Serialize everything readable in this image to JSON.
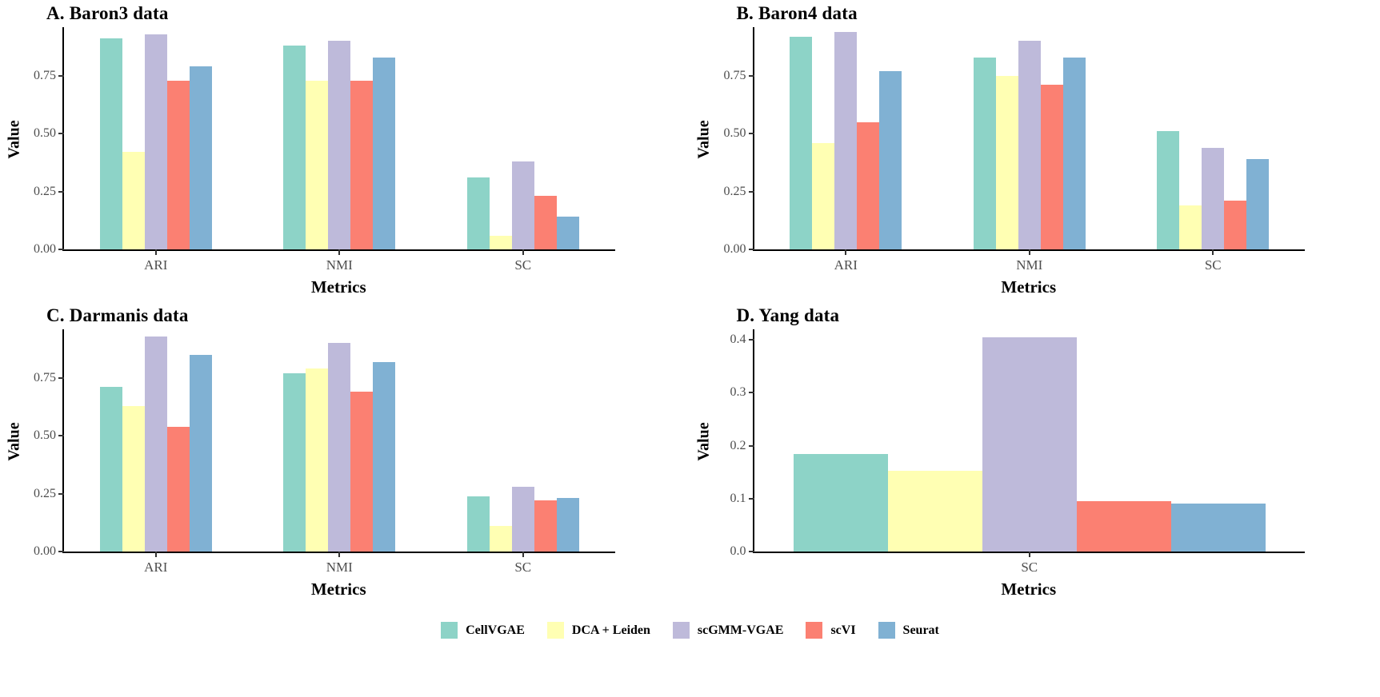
{
  "legend": {
    "items": [
      {
        "label": "CellVGAE",
        "color": "#8DD3C7"
      },
      {
        "label": "DCA + Leiden",
        "color": "#FFFFB3"
      },
      {
        "label": "scGMM-VGAE",
        "color": "#BEBADA"
      },
      {
        "label": "scVI",
        "color": "#FB8072"
      },
      {
        "label": "Seurat",
        "color": "#80B1D3"
      }
    ]
  },
  "chart_data": [
    {
      "type": "bar",
      "title": "A. Baron3 data",
      "xlabel": "Metrics",
      "ylabel": "Value",
      "categories": [
        "ARI",
        "NMI",
        "SC"
      ],
      "yticks": [
        0.0,
        0.25,
        0.5,
        0.75
      ],
      "ytick_labels": [
        "0.00",
        "0.25",
        "0.50",
        "0.75"
      ],
      "ylim": [
        0,
        0.96
      ],
      "grid": false,
      "legend_position": "bottom-shared",
      "series": [
        {
          "name": "CellVGAE",
          "values": [
            0.91,
            0.88,
            0.31
          ]
        },
        {
          "name": "DCA + Leiden",
          "values": [
            0.42,
            0.73,
            0.06
          ]
        },
        {
          "name": "scGMM-VGAE",
          "values": [
            0.93,
            0.9,
            0.38
          ]
        },
        {
          "name": "scVI",
          "values": [
            0.73,
            0.73,
            0.23
          ]
        },
        {
          "name": "Seurat",
          "values": [
            0.79,
            0.83,
            0.14
          ]
        }
      ]
    },
    {
      "type": "bar",
      "title": "B. Baron4 data",
      "xlabel": "Metrics",
      "ylabel": "Value",
      "categories": [
        "ARI",
        "NMI",
        "SC"
      ],
      "yticks": [
        0.0,
        0.25,
        0.5,
        0.75
      ],
      "ytick_labels": [
        "0.00",
        "0.25",
        "0.50",
        "0.75"
      ],
      "ylim": [
        0,
        0.96
      ],
      "grid": false,
      "legend_position": "bottom-shared",
      "series": [
        {
          "name": "CellVGAE",
          "values": [
            0.92,
            0.83,
            0.51
          ]
        },
        {
          "name": "DCA + Leiden",
          "values": [
            0.46,
            0.75,
            0.19
          ]
        },
        {
          "name": "scGMM-VGAE",
          "values": [
            0.94,
            0.9,
            0.44
          ]
        },
        {
          "name": "scVI",
          "values": [
            0.55,
            0.71,
            0.21
          ]
        },
        {
          "name": "Seurat",
          "values": [
            0.77,
            0.83,
            0.39
          ]
        }
      ]
    },
    {
      "type": "bar",
      "title": "C. Darmanis data",
      "xlabel": "Metrics",
      "ylabel": "Value",
      "categories": [
        "ARI",
        "NMI",
        "SC"
      ],
      "yticks": [
        0.0,
        0.25,
        0.5,
        0.75
      ],
      "ytick_labels": [
        "0.00",
        "0.25",
        "0.50",
        "0.75"
      ],
      "ylim": [
        0,
        0.96
      ],
      "grid": false,
      "legend_position": "bottom-shared",
      "series": [
        {
          "name": "CellVGAE",
          "values": [
            0.71,
            0.77,
            0.24
          ]
        },
        {
          "name": "DCA + Leiden",
          "values": [
            0.63,
            0.79,
            0.11
          ]
        },
        {
          "name": "scGMM-VGAE",
          "values": [
            0.93,
            0.9,
            0.28
          ]
        },
        {
          "name": "scVI",
          "values": [
            0.54,
            0.69,
            0.22
          ]
        },
        {
          "name": "Seurat",
          "values": [
            0.85,
            0.82,
            0.23
          ]
        }
      ]
    },
    {
      "type": "bar",
      "title": "D. Yang data",
      "xlabel": "Metrics",
      "ylabel": "Value",
      "categories": [
        "SC"
      ],
      "yticks": [
        0.0,
        0.1,
        0.2,
        0.3,
        0.4
      ],
      "ytick_labels": [
        "0.0",
        "0.1",
        "0.2",
        "0.3",
        "0.4"
      ],
      "ylim": [
        0,
        0.42
      ],
      "grid": false,
      "legend_position": "bottom-shared",
      "series": [
        {
          "name": "CellVGAE",
          "values": [
            0.185
          ]
        },
        {
          "name": "DCA + Leiden",
          "values": [
            0.152
          ]
        },
        {
          "name": "scGMM-VGAE",
          "values": [
            0.405
          ]
        },
        {
          "name": "scVI",
          "values": [
            0.095
          ]
        },
        {
          "name": "Seurat",
          "values": [
            0.09
          ]
        }
      ]
    }
  ]
}
